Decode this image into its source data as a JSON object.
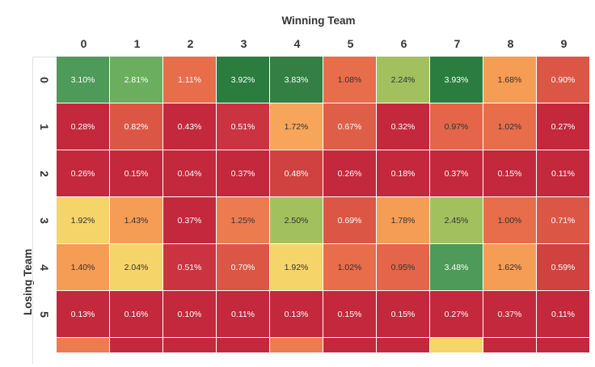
{
  "chart_data": {
    "type": "heatmap",
    "xlabel": "Winning Team",
    "ylabel": "Losing Team",
    "x_categories": [
      "0",
      "1",
      "2",
      "3",
      "4",
      "5",
      "6",
      "7",
      "8",
      "9"
    ],
    "y_categories": [
      "0",
      "1",
      "2",
      "3",
      "4",
      "5"
    ],
    "values": [
      [
        3.1,
        2.81,
        1.11,
        3.92,
        3.83,
        1.08,
        2.24,
        3.93,
        1.68,
        0.9
      ],
      [
        0.28,
        0.82,
        0.43,
        0.51,
        1.72,
        0.67,
        0.32,
        0.97,
        1.02,
        0.27
      ],
      [
        0.26,
        0.15,
        0.04,
        0.37,
        0.48,
        0.26,
        0.18,
        0.37,
        0.15,
        0.11
      ],
      [
        1.92,
        1.43,
        0.37,
        1.25,
        2.5,
        0.69,
        1.78,
        2.45,
        1.0,
        0.71
      ],
      [
        1.4,
        2.04,
        0.51,
        0.7,
        1.92,
        1.02,
        0.95,
        3.48,
        1.62,
        0.59
      ],
      [
        0.13,
        0.16,
        0.1,
        0.11,
        0.13,
        0.15,
        0.15,
        0.27,
        0.37,
        0.11
      ]
    ],
    "labels": [
      [
        "3.10%",
        "2.81%",
        "1.11%",
        "3.92%",
        "3.83%",
        "1.08%",
        "2.24%",
        "3.93%",
        "1.68%",
        "0.90%"
      ],
      [
        "0.28%",
        "0.82%",
        "0.43%",
        "0.51%",
        "1.72%",
        "0.67%",
        "0.32%",
        "0.97%",
        "1.02%",
        "0.27%"
      ],
      [
        "0.26%",
        "0.15%",
        "0.04%",
        "0.37%",
        "0.48%",
        "0.26%",
        "0.18%",
        "0.37%",
        "0.15%",
        "0.11%"
      ],
      [
        "1.92%",
        "1.43%",
        "0.37%",
        "1.25%",
        "2.50%",
        "0.69%",
        "1.78%",
        "2.45%",
        "1.00%",
        "0.71%"
      ],
      [
        "1.40%",
        "2.04%",
        "0.51%",
        "0.70%",
        "1.92%",
        "1.02%",
        "0.95%",
        "3.48%",
        "1.62%",
        "0.59%"
      ],
      [
        "0.13%",
        "0.16%",
        "0.10%",
        "0.11%",
        "0.13%",
        "0.15%",
        "0.15%",
        "0.27%",
        "0.37%",
        "0.11%"
      ]
    ],
    "colors": [
      [
        "#4e9a58",
        "#6aae5e",
        "#e76d4b",
        "#2a7d3f",
        "#337f44",
        "#e86d4b",
        "#a2c05e",
        "#2a7d3f",
        "#f59c55",
        "#dc5646"
      ],
      [
        "#c4283c",
        "#dc5646",
        "#c4283c",
        "#cc3340",
        "#f7a55a",
        "#df5e48",
        "#c4283c",
        "#e4654a",
        "#e86d4b",
        "#c4283c"
      ],
      [
        "#c4283c",
        "#c4283c",
        "#c4283c",
        "#c4283c",
        "#d0423f",
        "#c4283c",
        "#c4283c",
        "#c4283c",
        "#c4283c",
        "#c4283c"
      ],
      [
        "#f5d46a",
        "#f59c55",
        "#c4283c",
        "#ec7c50",
        "#a2c05e",
        "#dc5646",
        "#f59c55",
        "#a2c05e",
        "#e86d4b",
        "#dc5646"
      ],
      [
        "#f59c55",
        "#f5d46a",
        "#cc3340",
        "#dc5646",
        "#f5d46a",
        "#e86d4b",
        "#e4654a",
        "#4e9a58",
        "#f59c55",
        "#d0423f"
      ],
      [
        "#c4283c",
        "#c4283c",
        "#c4283c",
        "#c4283c",
        "#c4283c",
        "#c4283c",
        "#c4283c",
        "#c4283c",
        "#c4283c",
        "#c4283c"
      ]
    ],
    "partial_row_colors": [
      "#ec7c50",
      "#c4283c",
      "#c4283c",
      "#c4283c",
      "#ec7c50",
      "#c4283c",
      "#c4283c",
      "#f5d46a",
      "#c4283c",
      "#c4283c"
    ],
    "dark_text_colors": [
      "#f5d46a",
      "#a2c05e",
      "#f7a55a",
      "#f59c55",
      "#ec7c50",
      "#e86d4b",
      "#e4654a"
    ]
  }
}
